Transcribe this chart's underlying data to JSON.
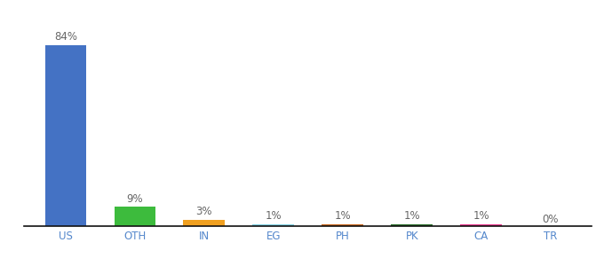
{
  "categories": [
    "US",
    "OTH",
    "IN",
    "EG",
    "PH",
    "PK",
    "CA",
    "TR"
  ],
  "values": [
    84,
    9,
    3,
    1,
    1,
    1,
    1,
    0
  ],
  "labels": [
    "84%",
    "9%",
    "3%",
    "1%",
    "1%",
    "1%",
    "1%",
    "0%"
  ],
  "bar_colors": [
    "#4472c4",
    "#3dbb3d",
    "#f0a020",
    "#7ecfe0",
    "#c86418",
    "#2a6e2a",
    "#e8368c",
    "#888888"
  ],
  "background_color": "#ffffff",
  "ylim": [
    0,
    95
  ],
  "label_fontsize": 8.5,
  "tick_fontsize": 8.5,
  "tick_color": "#5588cc",
  "label_color": "#666666",
  "bar_width": 0.6
}
